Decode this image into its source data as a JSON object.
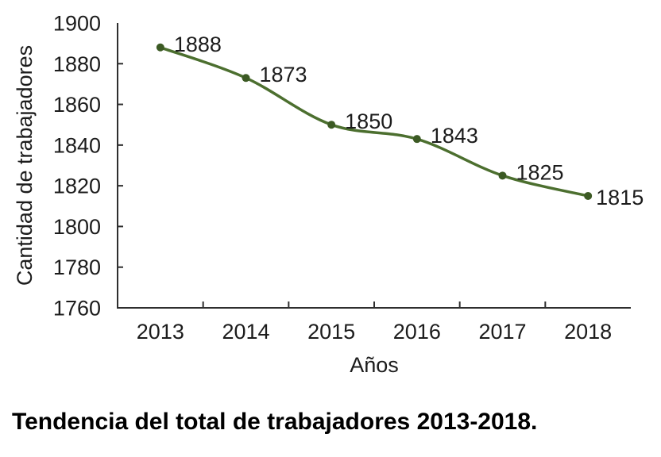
{
  "figure": {
    "caption": "Tendencia del total de trabajadores 2013-2018."
  },
  "chart_data": {
    "type": "line",
    "title": "Tendencia del total de trabajadores 2013-2018.",
    "categories": [
      "2013",
      "2014",
      "2015",
      "2016",
      "2017",
      "2018"
    ],
    "series": [
      {
        "name": "Cantidad de trabajadores",
        "values": [
          1888,
          1873,
          1850,
          1843,
          1825,
          1815
        ]
      }
    ],
    "data_labels": [
      "1888",
      "1873",
      "1850",
      "1843",
      "1825",
      "1815"
    ],
    "xlabel": "Años",
    "ylabel": "Cantidad de trabajadores",
    "ylim": [
      1760,
      1900
    ],
    "yticks": [
      1760,
      1780,
      1800,
      1820,
      1840,
      1860,
      1880,
      1900
    ],
    "grid": false,
    "legend": "none",
    "smooth": true,
    "marker": "circle",
    "colors": {
      "line": "#4c6f2f",
      "marker": "#3c5a24",
      "axis": "#2e2e2e",
      "text": "#1c1c1c"
    }
  }
}
